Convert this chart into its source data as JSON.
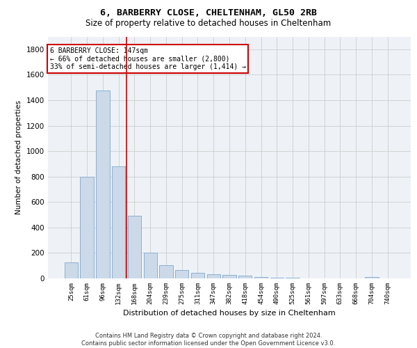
{
  "title": "6, BARBERRY CLOSE, CHELTENHAM, GL50 2RB",
  "subtitle": "Size of property relative to detached houses in Cheltenham",
  "xlabel": "Distribution of detached houses by size in Cheltenham",
  "ylabel": "Number of detached properties",
  "categories": [
    "25sqm",
    "61sqm",
    "96sqm",
    "132sqm",
    "168sqm",
    "204sqm",
    "239sqm",
    "275sqm",
    "311sqm",
    "347sqm",
    "382sqm",
    "418sqm",
    "454sqm",
    "490sqm",
    "525sqm",
    "561sqm",
    "597sqm",
    "633sqm",
    "668sqm",
    "704sqm",
    "740sqm"
  ],
  "values": [
    125,
    800,
    1475,
    880,
    490,
    205,
    105,
    65,
    45,
    35,
    30,
    20,
    10,
    5,
    3,
    2,
    2,
    2,
    2,
    10,
    2
  ],
  "bar_color": "#ccd9e8",
  "bar_edge_color": "#8ab0d0",
  "grid_color": "#cccccc",
  "vline_color": "#cc0000",
  "vline_pos": 3.5,
  "annotation_text": "6 BARBERRY CLOSE: 147sqm\n← 66% of detached houses are smaller (2,800)\n33% of semi-detached houses are larger (1,414) →",
  "annotation_box_facecolor": "#ffffff",
  "annotation_box_edgecolor": "#cc0000",
  "ylim": [
    0,
    1900
  ],
  "yticks": [
    0,
    200,
    400,
    600,
    800,
    1000,
    1200,
    1400,
    1600,
    1800
  ],
  "background_color": "#ffffff",
  "plot_background": "#eef2f7",
  "footer": "Contains HM Land Registry data © Crown copyright and database right 2024.\nContains public sector information licensed under the Open Government Licence v3.0."
}
